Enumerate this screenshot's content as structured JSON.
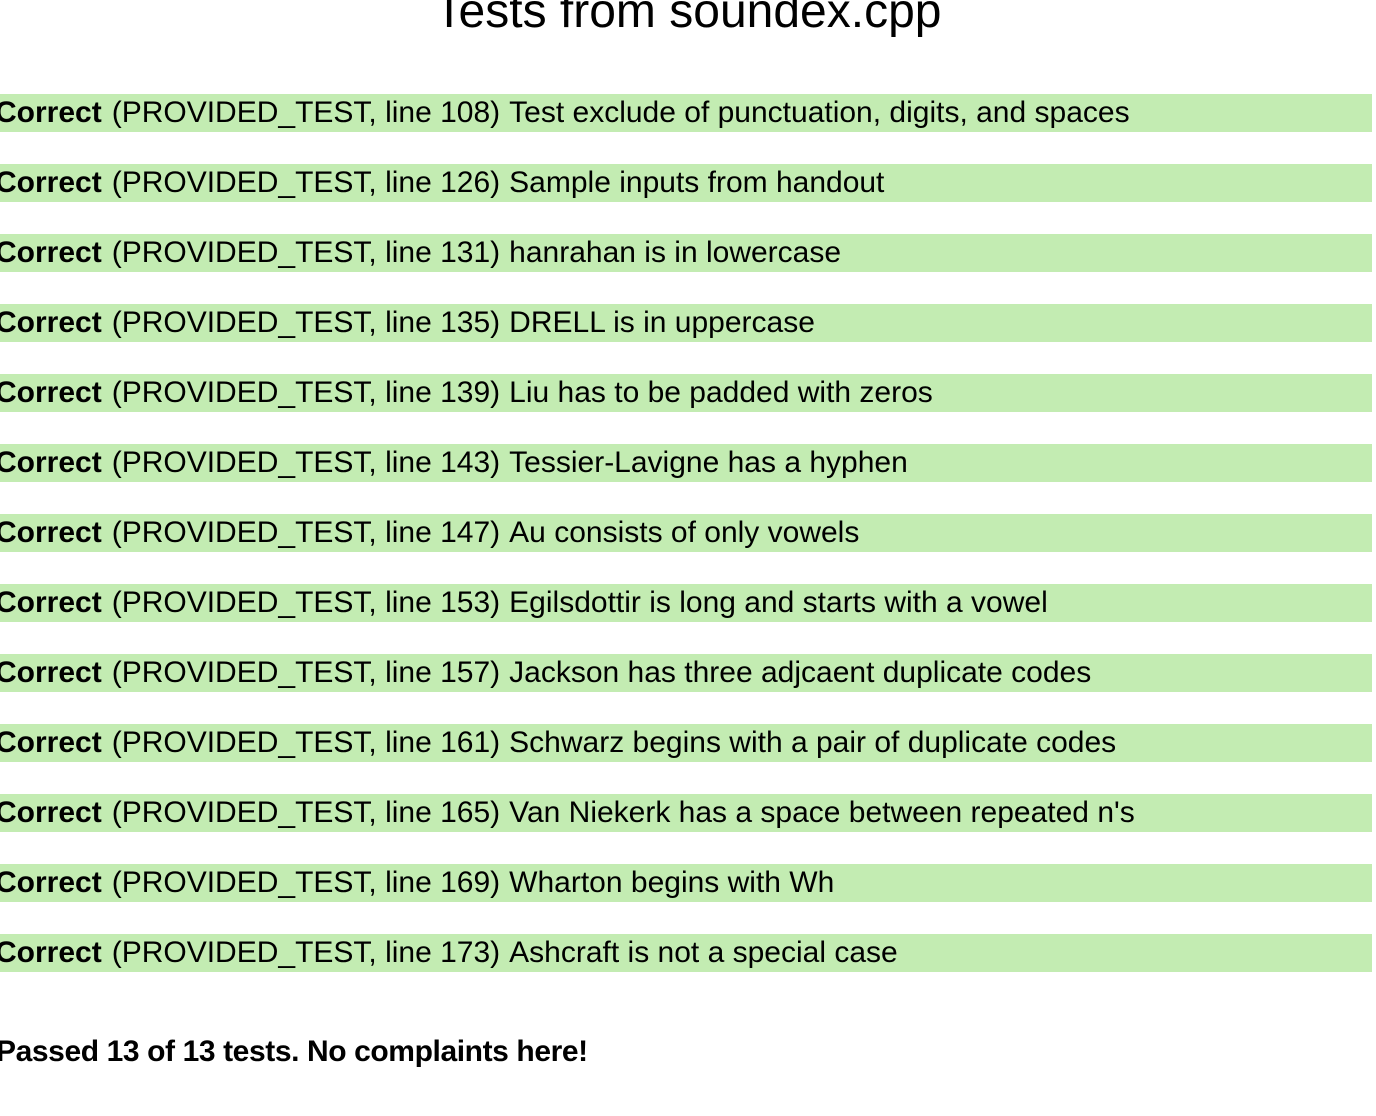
{
  "page": {
    "title": "Tests from soundex.cpp"
  },
  "results": [
    {
      "status": "Correct",
      "meta": "(PROVIDED_TEST, line 108)",
      "description": "Test exclude of punctuation, digits, and spaces"
    },
    {
      "status": "Correct",
      "meta": "(PROVIDED_TEST, line 126)",
      "description": "Sample inputs from handout"
    },
    {
      "status": "Correct",
      "meta": "(PROVIDED_TEST, line 131)",
      "description": "hanrahan is in lowercase"
    },
    {
      "status": "Correct",
      "meta": "(PROVIDED_TEST, line 135)",
      "description": "DRELL is in uppercase"
    },
    {
      "status": "Correct",
      "meta": "(PROVIDED_TEST, line 139)",
      "description": "Liu has to be padded with zeros"
    },
    {
      "status": "Correct",
      "meta": "(PROVIDED_TEST, line 143)",
      "description": "Tessier-Lavigne has a hyphen"
    },
    {
      "status": "Correct",
      "meta": "(PROVIDED_TEST, line 147)",
      "description": "Au consists of only vowels"
    },
    {
      "status": "Correct",
      "meta": "(PROVIDED_TEST, line 153)",
      "description": "Egilsdottir is long and starts with a vowel"
    },
    {
      "status": "Correct",
      "meta": "(PROVIDED_TEST, line 157)",
      "description": "Jackson has three adjcaent duplicate codes"
    },
    {
      "status": "Correct",
      "meta": "(PROVIDED_TEST, line 161)",
      "description": "Schwarz begins with a pair of duplicate codes"
    },
    {
      "status": "Correct",
      "meta": "(PROVIDED_TEST, line 165)",
      "description": "Van Niekerk has a space between repeated n's"
    },
    {
      "status": "Correct",
      "meta": "(PROVIDED_TEST, line 169)",
      "description": "Wharton begins with Wh"
    },
    {
      "status": "Correct",
      "meta": "(PROVIDED_TEST, line 173)",
      "description": "Ashcraft is not a special case"
    }
  ],
  "summary": {
    "text": "Passed 13 of 13 tests. No complaints here!"
  },
  "colors": {
    "pass_background": "#c3ecb2",
    "text": "#000000",
    "page_background": "#ffffff"
  }
}
